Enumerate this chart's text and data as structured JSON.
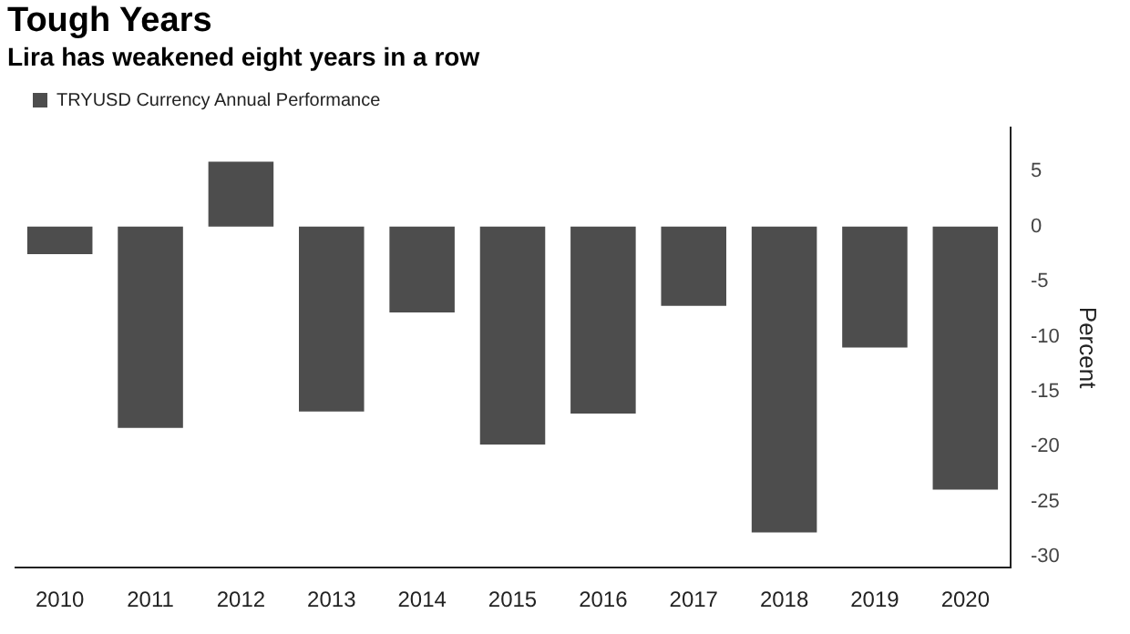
{
  "chart_data": {
    "type": "bar",
    "title": "Tough Years",
    "subtitle": "Lira has weakened eight years in a row",
    "ylabel": "Percent",
    "categories": [
      "2010",
      "2011",
      "2012",
      "2013",
      "2014",
      "2015",
      "2016",
      "2017",
      "2018",
      "2019",
      "2020"
    ],
    "series": [
      {
        "name": "TRYUSD Currency Annual Performance",
        "color": "#4d4d4d",
        "values": [
          -2.5,
          -18.3,
          5.9,
          -16.8,
          -7.8,
          -19.8,
          -17,
          -7.2,
          -27.8,
          -11,
          -23.9
        ]
      }
    ],
    "ylim": [
      -31,
      9
    ],
    "yticks": [
      5,
      0,
      -5,
      -10,
      -15,
      -20,
      -25,
      -30
    ],
    "grid": false,
    "legend": "top left"
  }
}
